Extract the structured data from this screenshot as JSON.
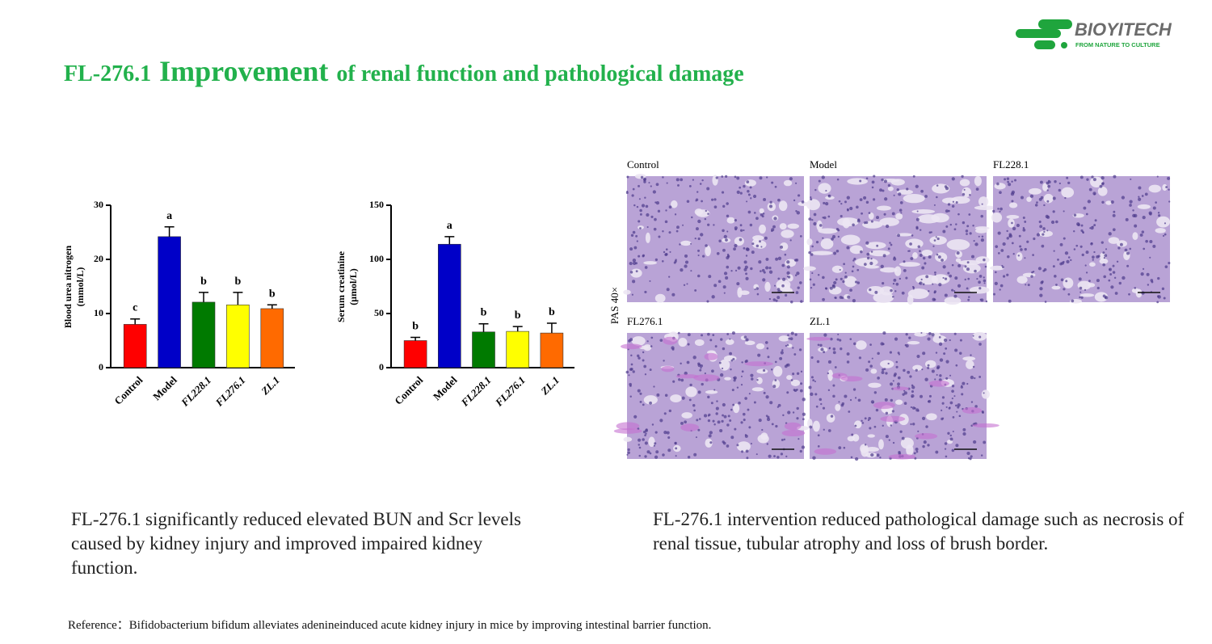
{
  "header": {
    "title_parts": [
      "FL-276.1",
      "Improvement",
      "of renal function and pathological damage"
    ],
    "logo": {
      "name": "BIOYITECH",
      "tagline": "FROM NATURE TO CULTURE"
    }
  },
  "chart_data": [
    {
      "type": "bar",
      "ylabel": [
        "Blood urea nitrogen",
        "(mmol/L)"
      ],
      "categories": [
        "Control",
        "Model",
        "FL228.1",
        "FL276.1",
        "ZL.1"
      ],
      "values": [
        8,
        24.2,
        12.1,
        11.6,
        10.9
      ],
      "errors": [
        1,
        1.8,
        1.8,
        2.3,
        0.7
      ],
      "significance": [
        "c",
        "a",
        "b",
        "b",
        "b"
      ],
      "colors": [
        "#ff0000",
        "#0000c8",
        "#007a00",
        "#ffff00",
        "#ff6a00"
      ],
      "ylim": [
        0,
        30
      ],
      "yticks": [
        0,
        10,
        20,
        30
      ]
    },
    {
      "type": "bar",
      "ylabel": [
        "Serum creatinine",
        "(μmol/L)"
      ],
      "categories": [
        "Control",
        "Model",
        "FL228.1",
        "FL276.1",
        "ZL.1"
      ],
      "values": [
        25,
        114,
        33,
        33.5,
        32
      ],
      "errors": [
        3,
        7,
        7.5,
        4.5,
        9
      ],
      "significance": [
        "b",
        "a",
        "b",
        "b",
        "b"
      ],
      "colors": [
        "#ff0000",
        "#0000c8",
        "#007a00",
        "#ffff00",
        "#ff6a00"
      ],
      "ylim": [
        0,
        150
      ],
      "yticks": [
        0,
        50,
        100,
        150
      ]
    }
  ],
  "histology": {
    "stain_label": "PAS 40×",
    "panels": [
      "Control",
      "Model",
      "FL228.1",
      "FL276.1",
      "ZL.1"
    ]
  },
  "paragraphs": [
    "FL-276.1 significantly reduced elevated BUN and Scr levels caused by kidney injury and improved impaired kidney function.",
    "FL-276.1 intervention reduced pathological damage such as necrosis of renal tissue, tubular atrophy and loss of brush border."
  ],
  "reference": "Reference：Bifidobacterium bifidum alleviates adenineinduced acute kidney injury in mice by improving intestinal barrier function."
}
